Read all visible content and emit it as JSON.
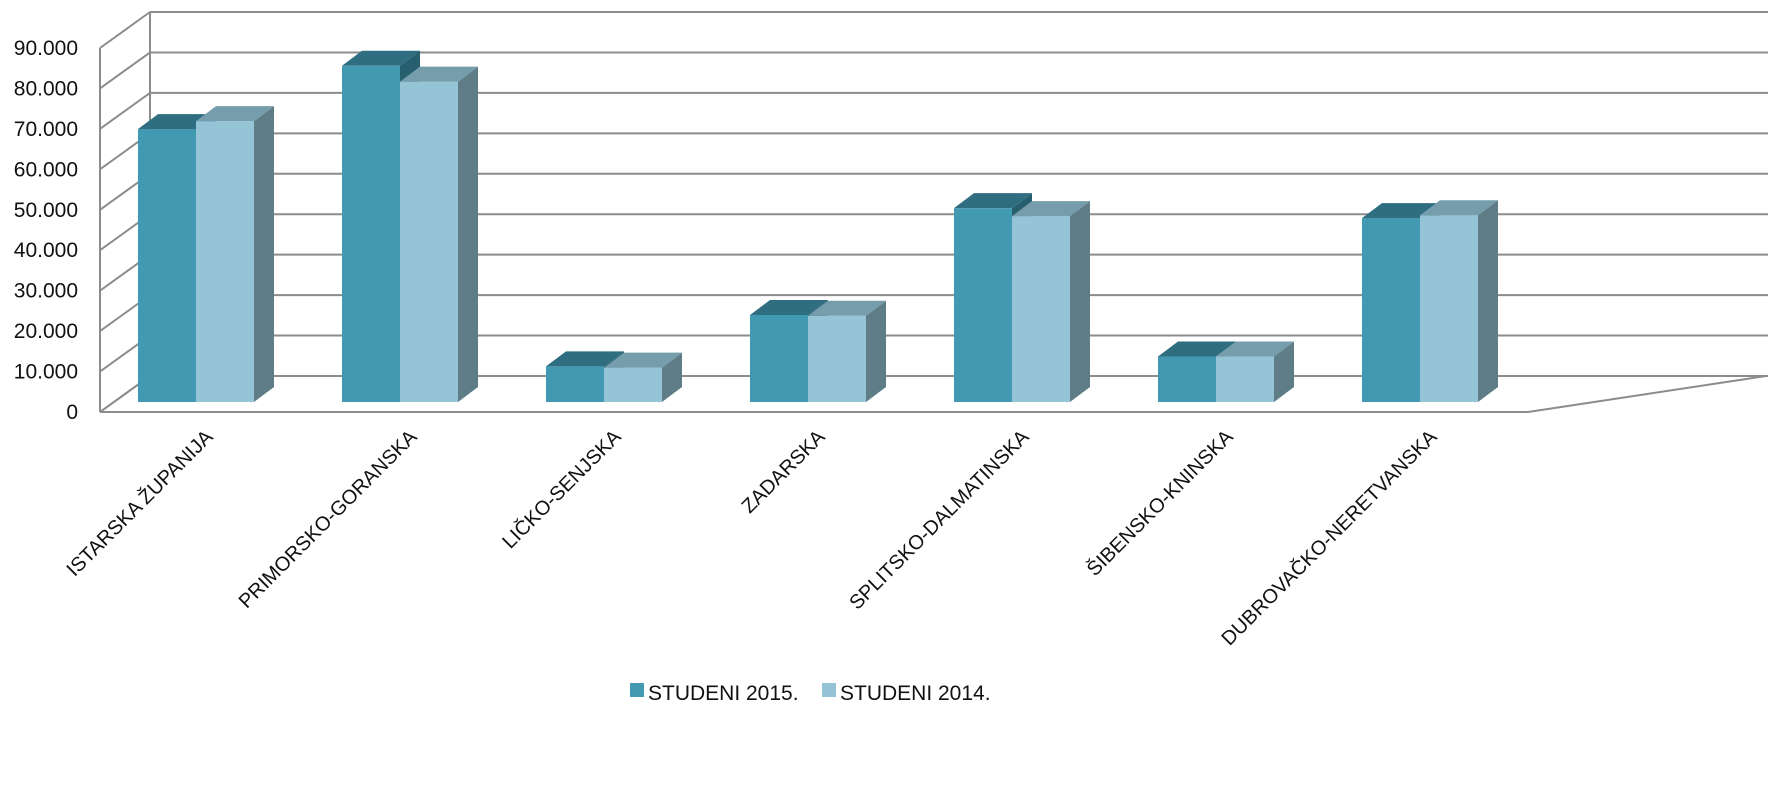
{
  "chart_data": {
    "type": "bar",
    "title": "",
    "xlabel": "",
    "ylabel": "",
    "ylim": [
      0,
      90000
    ],
    "y_ticks": [
      "0",
      "10.000",
      "20.000",
      "30.000",
      "40.000",
      "50.000",
      "60.000",
      "70.000",
      "80.000",
      "90.000"
    ],
    "y_tick_values": [
      0,
      10000,
      20000,
      30000,
      40000,
      50000,
      60000,
      70000,
      80000,
      90000
    ],
    "grid": true,
    "legend_position": "bottom-center",
    "categories": [
      "ISTARSKA ŽUPANIJA",
      "PRIMORSKO-GORANSKA",
      "LIČKO-SENJSKA",
      "ZADARSKA",
      "SPLITSKO-DALMATINSKA",
      "ŠIBENSKO-KNINSKA",
      "DUBROVAČKO-NERETVANSKA"
    ],
    "series": [
      {
        "name": "STUDENI 2015.",
        "color": "#4199B2",
        "values": [
          69000,
          85000,
          9000,
          22000,
          49000,
          11500,
          46500
        ]
      },
      {
        "name": "STUDENI 2014.",
        "color": "#94C4D6",
        "values": [
          71000,
          81000,
          8700,
          21800,
          47000,
          11500,
          47200
        ]
      }
    ]
  }
}
